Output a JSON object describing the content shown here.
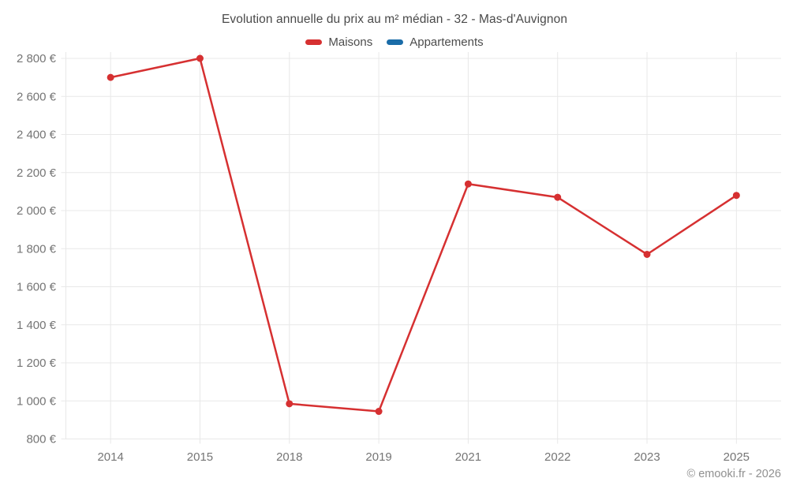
{
  "header": {
    "title": "Evolution annuelle du prix au m² médian - 32 - Mas-d'Auvignon"
  },
  "legend": {
    "items": [
      {
        "label": "Maisons",
        "color": "#d63031"
      },
      {
        "label": "Appartements",
        "color": "#1a6ca8"
      }
    ]
  },
  "footer": {
    "copyright": "© emooki.fr - 2026"
  },
  "chart_data": {
    "type": "line",
    "title": "Evolution annuelle du prix au m² médian - 32 - Mas-d'Auvignon",
    "categories": [
      "2014",
      "2015",
      "2018",
      "2019",
      "2021",
      "2022",
      "2023",
      "2025"
    ],
    "series": [
      {
        "name": "Maisons",
        "color": "#d63031",
        "values": [
          2700,
          2800,
          985,
          945,
          2140,
          2070,
          1770,
          2080
        ]
      },
      {
        "name": "Appartements",
        "color": "#1a6ca8",
        "values": []
      }
    ],
    "xlabel": "",
    "ylabel": "",
    "ylim": [
      800,
      2800
    ],
    "y_tick_step": 200,
    "y_tick_labels": [
      "800 €",
      "1 000 €",
      "1 200 €",
      "1 400 €",
      "1 600 €",
      "1 800 €",
      "2 000 €",
      "2 200 €",
      "2 400 €",
      "2 600 €",
      "2 800 €"
    ],
    "grid": true,
    "legend_position": "top",
    "marker": "circle"
  }
}
